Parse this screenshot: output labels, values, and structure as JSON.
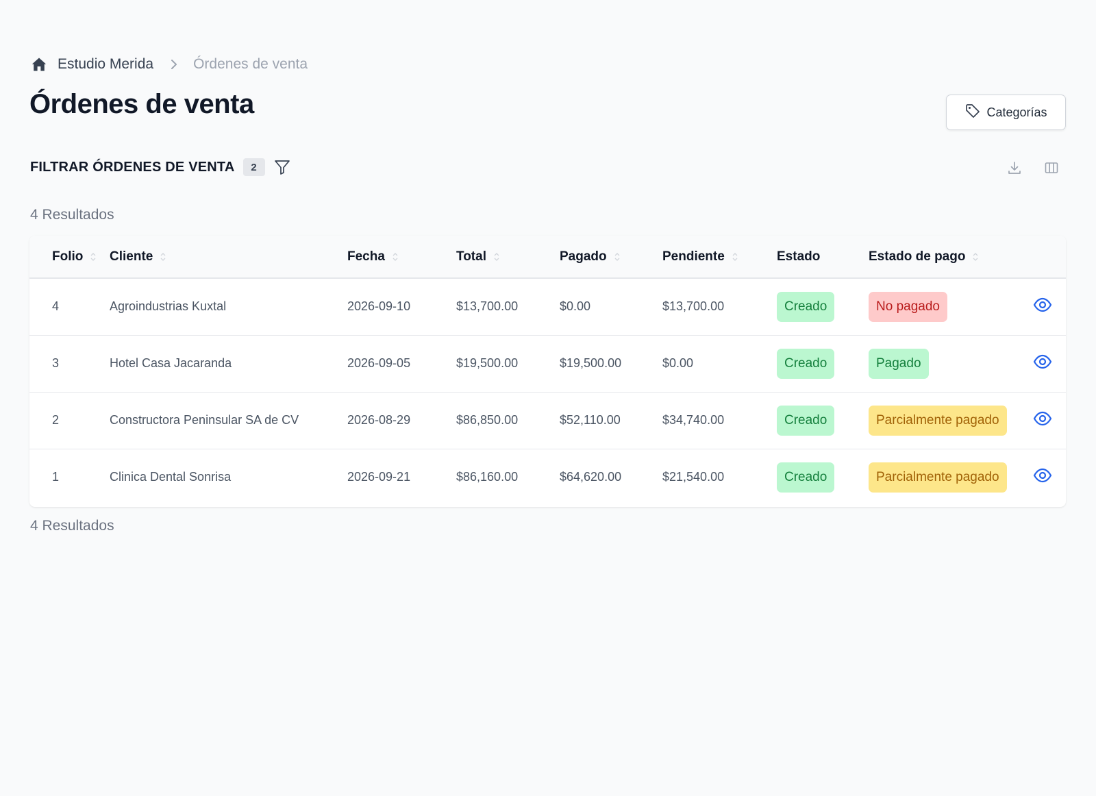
{
  "breadcrumb": {
    "home_icon": "home-icon",
    "organization": "Estudio Merida",
    "separator_icon": "chevron-right-icon",
    "current": "Órdenes de venta"
  },
  "page": {
    "title": "Órdenes de venta"
  },
  "actions": {
    "categories_label": "Categorías",
    "categories_icon": "tag-icon",
    "download_icon": "download-icon",
    "columns_icon": "columns-icon"
  },
  "filters": {
    "title": "FILTRAR ÓRDENES DE VENTA",
    "count": "2",
    "icon": "funnel-icon"
  },
  "results": {
    "top": "4 Resultados",
    "bottom": "4 Resultados"
  },
  "table": {
    "headers": {
      "folio": "Folio",
      "cliente": "Cliente",
      "fecha": "Fecha",
      "total": "Total",
      "pagado": "Pagado",
      "pendiente": "Pendiente",
      "estado": "Estado",
      "estado_pago": "Estado de pago"
    },
    "rows": [
      {
        "folio": "4",
        "cliente": "Agroindustrias Kuxtal",
        "fecha": "2026-09-10",
        "total": "$13,700.00",
        "pagado": "$0.00",
        "pendiente": "$13,700.00",
        "estado": "Creado",
        "estado_pago": "No pagado",
        "estado_pago_status": "unpaid"
      },
      {
        "folio": "3",
        "cliente": "Hotel Casa Jacaranda",
        "fecha": "2026-09-05",
        "total": "$19,500.00",
        "pagado": "$19,500.00",
        "pendiente": "$0.00",
        "estado": "Creado",
        "estado_pago": "Pagado",
        "estado_pago_status": "paid"
      },
      {
        "folio": "2",
        "cliente": "Constructora Peninsular SA de CV",
        "fecha": "2026-08-29",
        "total": "$86,850.00",
        "pagado": "$52,110.00",
        "pendiente": "$34,740.00",
        "estado": "Creado",
        "estado_pago": "Parcialmente pagado",
        "estado_pago_status": "partial"
      },
      {
        "folio": "1",
        "cliente": "Clinica Dental Sonrisa",
        "fecha": "2026-09-21",
        "total": "$86,160.00",
        "pagado": "$64,620.00",
        "pendiente": "$21,540.00",
        "estado": "Creado",
        "estado_pago": "Parcialmente pagado",
        "estado_pago_status": "partial"
      }
    ],
    "row_action_icon": "eye-icon"
  },
  "colors": {
    "created_bg": "#bbf7d0",
    "created_text": "#15803d",
    "unpaid_bg": "#fecaca",
    "unpaid_text": "#b91c1c",
    "partial_bg": "#fde68a",
    "partial_text": "#a16207",
    "link_blue": "#2563eb"
  }
}
